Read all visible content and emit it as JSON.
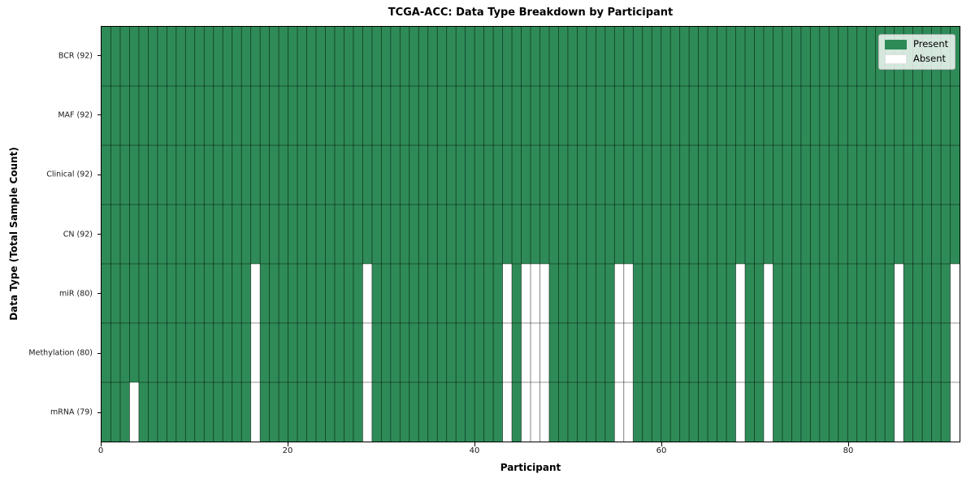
{
  "chart_data": {
    "type": "heatmap",
    "title": "TCGA-ACC: Data Type Breakdown by Participant",
    "xlabel": "Participant",
    "ylabel": "Data Type (Total Sample Count)",
    "n_participants": 92,
    "x_ticks": [
      0,
      20,
      40,
      60,
      80
    ],
    "x_range": [
      0,
      92
    ],
    "grid": true,
    "legend_position": "upper right",
    "colors": {
      "present": "#2e8b57",
      "absent": "#ffffff",
      "cell_gridline": "rgba(0,0,0,0.6)",
      "row_separator": "rgba(0,0,0,0.42)",
      "axis": "#000000"
    },
    "legend": [
      {
        "label": "Present",
        "color": "#2e8b57"
      },
      {
        "label": "Absent",
        "color": "#ffffff"
      }
    ],
    "rows": [
      {
        "label": "BCR (92)",
        "data_type": "BCR",
        "present_count": 92,
        "absent_participants": []
      },
      {
        "label": "MAF (92)",
        "data_type": "MAF",
        "present_count": 92,
        "absent_participants": []
      },
      {
        "label": "Clinical (92)",
        "data_type": "Clinical",
        "present_count": 92,
        "absent_participants": []
      },
      {
        "label": "CN (92)",
        "data_type": "CN",
        "present_count": 92,
        "absent_participants": []
      },
      {
        "label": "miR (80)",
        "data_type": "miR",
        "present_count": 80,
        "absent_participants": [
          16,
          28,
          43,
          45,
          46,
          47,
          55,
          56,
          68,
          71,
          85,
          91
        ]
      },
      {
        "label": "Methylation (80)",
        "data_type": "Methylation",
        "present_count": 80,
        "absent_participants": [
          16,
          28,
          43,
          45,
          46,
          47,
          55,
          56,
          68,
          71,
          85,
          91
        ]
      },
      {
        "label": "mRNA (79)",
        "data_type": "mRNA",
        "present_count": 79,
        "absent_participants": [
          3,
          16,
          28,
          43,
          45,
          46,
          47,
          55,
          56,
          68,
          71,
          85,
          91
        ]
      }
    ]
  }
}
